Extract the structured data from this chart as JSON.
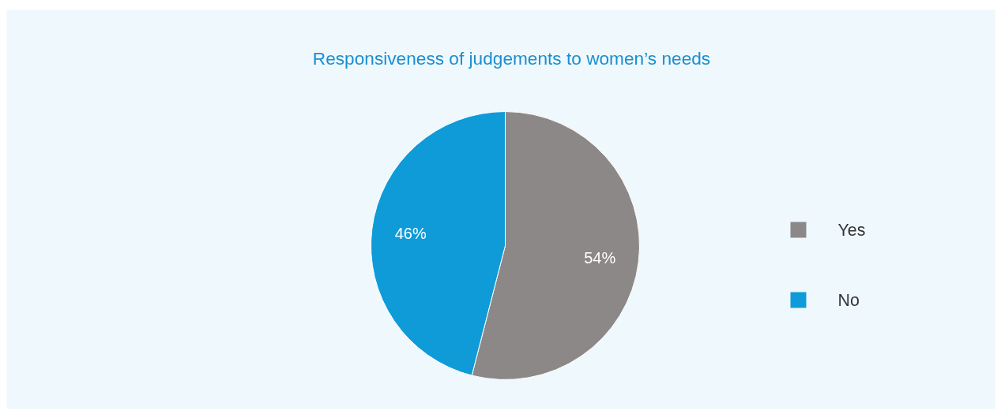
{
  "chart_data": {
    "type": "pie",
    "title": "Responsiveness of judgements to women’s needs",
    "categories": [
      "Yes",
      "No"
    ],
    "values": [
      54,
      46
    ],
    "colors": [
      "#8c8887",
      "#0e9bd8"
    ],
    "value_labels": [
      "54%",
      "46%"
    ],
    "legend": "right"
  }
}
